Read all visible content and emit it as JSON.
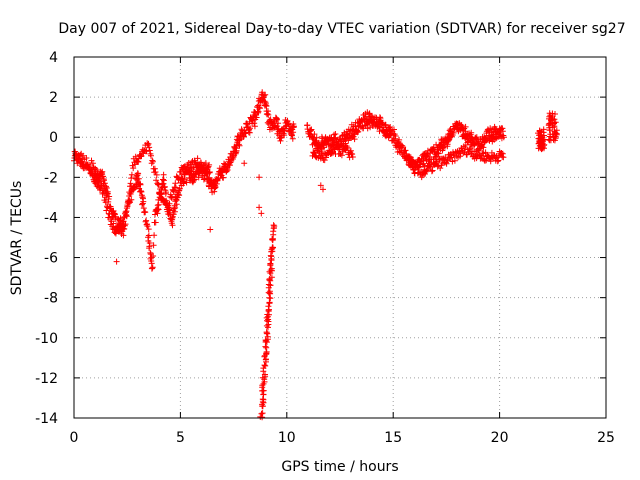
{
  "chart_data": {
    "type": "scatter",
    "title": "Day 007 of 2021, Sidereal Day-to-day VTEC variation (SDTVAR) for receiver sg27",
    "xlabel": "GPS time / hours",
    "ylabel": "SDTVAR / TECUs",
    "xlim": [
      0,
      25
    ],
    "ylim": [
      -14,
      4
    ],
    "xticks": [
      0,
      5,
      10,
      15,
      20,
      25
    ],
    "yticks": [
      -14,
      -12,
      -10,
      -8,
      -6,
      -4,
      -2,
      0,
      2,
      4
    ],
    "xtick_labels": [
      "0",
      "5",
      "10",
      "15",
      "20",
      "25"
    ],
    "ytick_labels": [
      "-14",
      "-12",
      "-10",
      "-8",
      "-6",
      "-4",
      "-2",
      "0",
      "2",
      "4"
    ],
    "grid": true,
    "marker": "+",
    "color": "#ff0000",
    "series": [
      {
        "name": "sg27",
        "trace_anchors": [
          [
            0.0,
            -0.9
          ],
          [
            0.3,
            -1.2
          ],
          [
            0.7,
            -1.5
          ],
          [
            1.0,
            -1.8
          ],
          [
            1.3,
            -2.0
          ],
          [
            1.6,
            -3.0
          ],
          [
            1.8,
            -3.8
          ],
          [
            2.0,
            -4.3
          ],
          [
            2.3,
            -4.5
          ],
          [
            2.5,
            -3.5
          ],
          [
            2.8,
            -2.5
          ],
          [
            3.0,
            -2.0
          ],
          [
            3.3,
            -3.5
          ],
          [
            3.5,
            -5.0
          ],
          [
            3.7,
            -6.5
          ],
          [
            3.8,
            -4.0
          ],
          [
            4.0,
            -3.0
          ],
          [
            4.2,
            -2.2
          ],
          [
            4.4,
            -3.5
          ],
          [
            4.6,
            -4.3
          ],
          [
            4.8,
            -3.0
          ],
          [
            5.0,
            -2.3
          ],
          [
            5.3,
            -1.8
          ],
          [
            5.6,
            -2.0
          ],
          [
            5.9,
            -1.5
          ],
          [
            6.2,
            -1.9
          ],
          [
            6.5,
            -2.5
          ],
          [
            6.8,
            -2.0
          ],
          [
            7.0,
            -1.8
          ],
          [
            7.3,
            -1.2
          ],
          [
            7.6,
            -0.5
          ],
          [
            7.9,
            0.2
          ],
          [
            8.2,
            0.6
          ],
          [
            8.5,
            1.0
          ],
          [
            8.7,
            1.6
          ],
          [
            8.9,
            2.2
          ],
          [
            9.1,
            1.0
          ],
          [
            9.3,
            0.5
          ],
          [
            9.5,
            0.8
          ],
          [
            9.7,
            0.0
          ],
          [
            10.0,
            0.6
          ],
          [
            10.3,
            0.3
          ],
          [
            11.0,
            0.4
          ],
          [
            11.5,
            -0.5
          ],
          [
            12.0,
            -0.2
          ],
          [
            12.5,
            -0.3
          ],
          [
            13.0,
            0.2
          ],
          [
            13.5,
            0.6
          ],
          [
            14.0,
            1.0
          ],
          [
            14.5,
            0.5
          ],
          [
            15.0,
            0.0
          ],
          [
            15.5,
            -0.8
          ],
          [
            16.0,
            -1.6
          ],
          [
            16.5,
            -1.0
          ],
          [
            17.0,
            -0.8
          ],
          [
            17.5,
            -0.2
          ],
          [
            18.0,
            0.6
          ],
          [
            18.5,
            0.0
          ],
          [
            19.0,
            -0.4
          ],
          [
            19.5,
            0.2
          ],
          [
            20.2,
            0.2
          ]
        ],
        "secondary_trace_anchors": [
          [
            0.8,
            -1.8
          ],
          [
            1.3,
            -2.6
          ],
          [
            1.6,
            -3.8
          ],
          [
            1.9,
            -4.6
          ],
          [
            2.4,
            -4.4
          ],
          [
            2.8,
            -1.2
          ],
          [
            3.2,
            -0.8
          ],
          [
            3.5,
            -0.4
          ],
          [
            4.0,
            -2.6
          ],
          [
            4.4,
            -3.6
          ],
          [
            5.0,
            -1.6
          ],
          [
            5.8,
            -1.3
          ],
          [
            6.3,
            -1.6
          ],
          [
            11.3,
            -0.8
          ],
          [
            11.8,
            -1.0
          ],
          [
            12.4,
            -0.6
          ],
          [
            13.0,
            -0.8
          ],
          [
            15.8,
            -1.2
          ],
          [
            16.3,
            -1.8
          ],
          [
            17.0,
            -1.4
          ],
          [
            17.8,
            -1.0
          ],
          [
            18.4,
            -0.6
          ],
          [
            19.0,
            -0.9
          ],
          [
            19.6,
            -1.0
          ],
          [
            20.2,
            -0.9
          ]
        ],
        "dropout_segment": {
          "x_range": [
            8.8,
            9.4
          ],
          "y_range": [
            -13.9,
            -4.4
          ]
        },
        "late_segments": [
          {
            "x_range": [
              21.8,
              22.1
            ],
            "y_range": [
              -0.6,
              0.4
            ]
          },
          {
            "x_range": [
              22.3,
              22.7
            ],
            "y_range": [
              -0.2,
              1.2
            ]
          }
        ],
        "scattered_points": [
          [
            2.0,
            -6.2
          ],
          [
            6.4,
            -4.6
          ],
          [
            8.0,
            -1.3
          ],
          [
            8.7,
            -2.0
          ],
          [
            8.7,
            -3.5
          ],
          [
            8.8,
            -3.8
          ],
          [
            11.7,
            -2.6
          ],
          [
            11.6,
            -2.4
          ]
        ]
      }
    ]
  }
}
